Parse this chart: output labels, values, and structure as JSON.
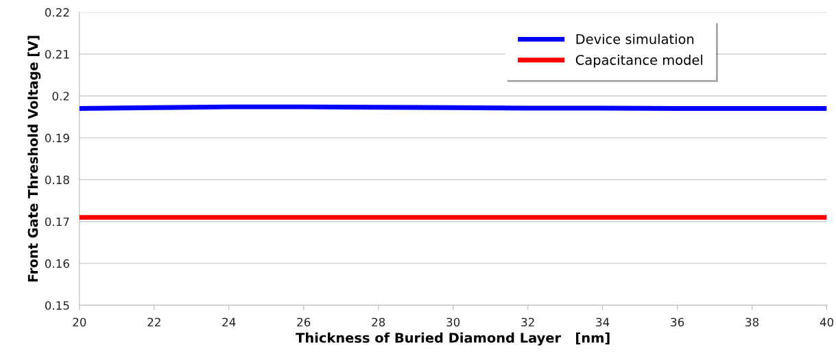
{
  "chart_data": {
    "type": "line",
    "xlabel": "Thickness of Buried Diamond Layer   [nm]",
    "ylabel": "Front Gate Threshold Voltage [V]",
    "x": [
      20,
      22,
      24,
      26,
      28,
      30,
      32,
      34,
      36,
      38,
      40
    ],
    "series": [
      {
        "name": "Device simulation",
        "color": "#0000ff",
        "values": [
          0.197,
          0.1972,
          0.1974,
          0.1974,
          0.1973,
          0.1972,
          0.1971,
          0.1971,
          0.197,
          0.197,
          0.197
        ]
      },
      {
        "name": "Capacitance model",
        "color": "#ff0000",
        "values": [
          0.171,
          0.171,
          0.171,
          0.171,
          0.171,
          0.171,
          0.171,
          0.171,
          0.171,
          0.171,
          0.171
        ]
      }
    ],
    "xlim": [
      20,
      40
    ],
    "xticks": [
      20,
      22,
      24,
      26,
      28,
      30,
      32,
      34,
      36,
      38,
      40
    ],
    "ylim": [
      0.15,
      0.22
    ],
    "yticks": [
      {
        "value": 0.15,
        "label": "0.15"
      },
      {
        "value": 0.16,
        "label": "0.16"
      },
      {
        "value": 0.17,
        "label": "0.17"
      },
      {
        "value": 0.18,
        "label": "0.18"
      },
      {
        "value": 0.19,
        "label": "0.19"
      },
      {
        "value": 0.2,
        "label": "0.2"
      },
      {
        "value": 0.21,
        "label": "0.21"
      },
      {
        "value": 0.22,
        "label": "0.22"
      }
    ],
    "grid": "y",
    "legend": "top right",
    "marker": "none",
    "line_style": "solid"
  }
}
